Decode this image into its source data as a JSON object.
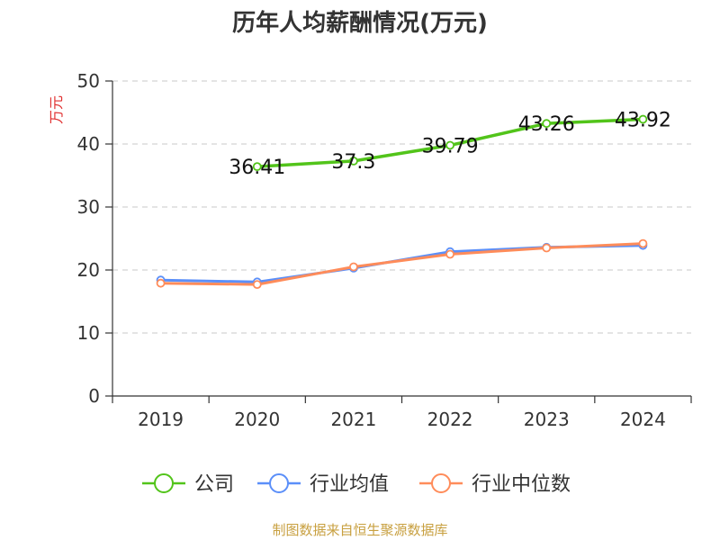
{
  "chart_data": {
    "type": "line",
    "title": "历年人均薪酬情况(万元)",
    "ylabel": "万元",
    "xlabel": "",
    "categories": [
      "2019",
      "2020",
      "2021",
      "2022",
      "2023",
      "2024"
    ],
    "ylim": [
      0,
      50
    ],
    "yticks": [
      0,
      10,
      20,
      30,
      40,
      50
    ],
    "grid": true,
    "legend_position": "bottom",
    "series": [
      {
        "name": "公司",
        "color": "#52c41a",
        "values": [
          null,
          36.41,
          37.3,
          39.79,
          43.26,
          43.92
        ],
        "labels": [
          "",
          "36.41",
          "37.3",
          "39.79",
          "43.26",
          "43.92"
        ]
      },
      {
        "name": "行业均值",
        "color": "#5b8ff9",
        "values": [
          18.4,
          18.1,
          20.3,
          22.9,
          23.6,
          23.9
        ]
      },
      {
        "name": "行业中位数",
        "color": "#ff8c5a",
        "values": [
          17.9,
          17.7,
          20.5,
          22.5,
          23.5,
          24.2
        ]
      }
    ]
  },
  "footer": {
    "source": "制图数据来自恒生聚源数据库"
  }
}
